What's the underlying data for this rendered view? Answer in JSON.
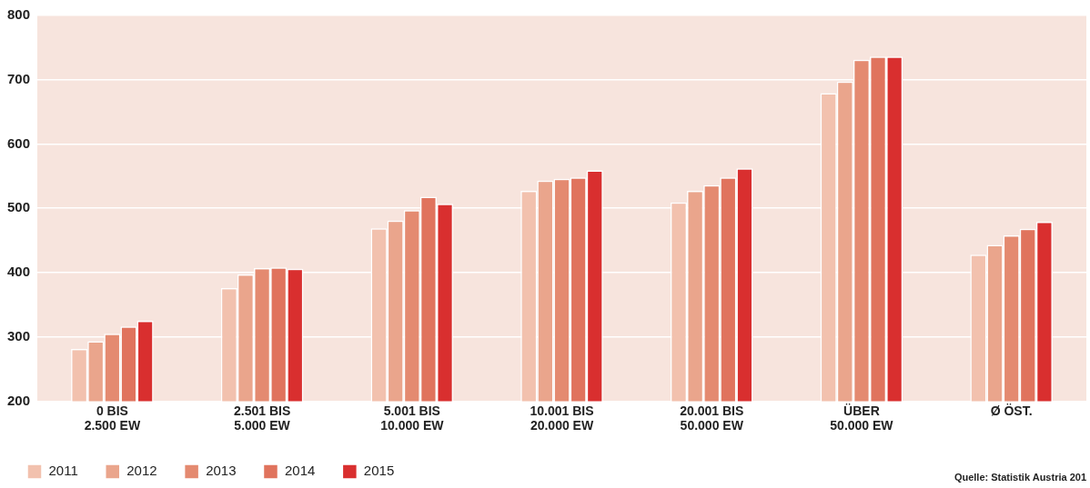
{
  "chart_data": {
    "type": "bar",
    "categories": [
      "0 BIS\n2.500 EW",
      "2.501 BIS\n5.000 EW",
      "5.001 BIS\n10.000 EW",
      "10.001 BIS\n20.000 EW",
      "20.001 BIS\n50.000 EW",
      "ÜBER\n50.000 EW",
      "Ø ÖST."
    ],
    "series": [
      {
        "name": "2011",
        "color": "#f2c1ae",
        "values": [
          281,
          376,
          469,
          527,
          509,
          679,
          428
        ]
      },
      {
        "name": "2012",
        "color": "#eaa58c",
        "values": [
          293,
          397,
          481,
          543,
          527,
          697,
          443
        ]
      },
      {
        "name": "2013",
        "color": "#e48a70",
        "values": [
          305,
          407,
          497,
          546,
          536,
          731,
          458
        ]
      },
      {
        "name": "2014",
        "color": "#e0735d",
        "values": [
          316,
          408,
          518,
          548,
          548,
          736,
          468
        ]
      },
      {
        "name": "2015",
        "color": "#d92f2f",
        "values": [
          325,
          406,
          507,
          559,
          562,
          736,
          479
        ]
      }
    ],
    "ylim": [
      200,
      800
    ],
    "yticks": [
      200,
      300,
      400,
      500,
      600,
      700,
      800
    ],
    "grid": "y",
    "legend": "bottom left",
    "annotations": [
      "Quelle: Statistik Austria 201"
    ]
  }
}
